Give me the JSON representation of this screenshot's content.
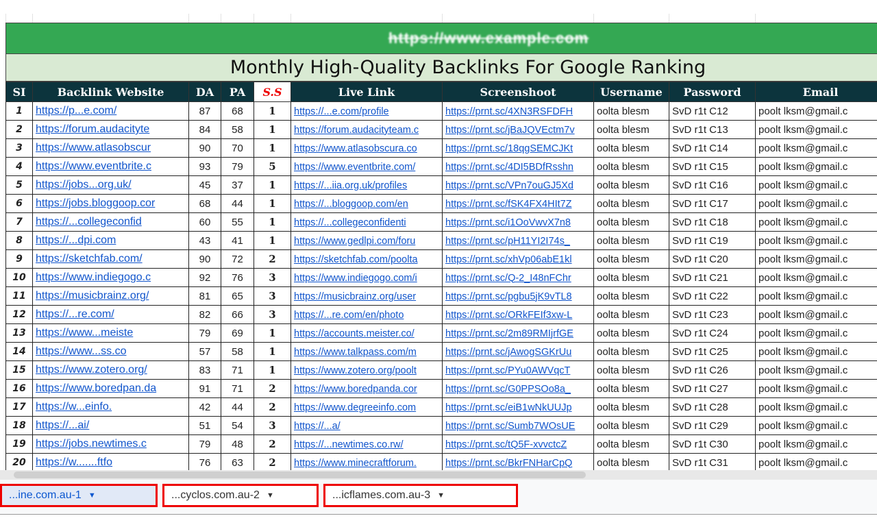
{
  "banner_text": "https://www.example.com",
  "title": "Monthly High-Quality Backlinks For Google Ranking",
  "columns": [
    "SI",
    "Backlink Website",
    "DA",
    "PA",
    "S.S",
    "Live Link",
    "Screenshoot",
    "Username",
    "Password",
    "Email"
  ],
  "rows": [
    [
      "1",
      "https://p...e.com/",
      "87",
      "68",
      "1",
      "https://...e.com/profile",
      "https://prnt.sc/4XN3RSFDFH",
      "oolta blesm",
      "SvD r1t C12",
      "poolt lksm@gmail.c"
    ],
    [
      "2",
      "https://forum.audacityte",
      "84",
      "58",
      "1",
      "https://forum.audacityteam.c",
      "https://prnt.sc/jBaJQVEctm7v",
      "oolta blesm",
      "SvD r1t C13",
      "poolt lksm@gmail.c"
    ],
    [
      "3",
      "https://www.atlasobscur",
      "90",
      "70",
      "1",
      "https://www.atlasobscura.co",
      "https://prnt.sc/18qgSEMCJKt",
      "oolta blesm",
      "SvD r1t C14",
      "poolt lksm@gmail.c"
    ],
    [
      "4",
      "https://www.eventbrite.c",
      "93",
      "79",
      "5",
      "https://www.eventbrite.com/",
      "https://prnt.sc/4DI5BDfRsshn",
      "oolta blesm",
      "SvD r1t C15",
      "poolt lksm@gmail.c"
    ],
    [
      "5",
      "https://jobs...org.uk/",
      "45",
      "37",
      "1",
      "https://...iia.org.uk/profiles",
      "https://prnt.sc/VPn7ouGJ5Xd",
      "oolta blesm",
      "SvD r1t C16",
      "poolt lksm@gmail.c"
    ],
    [
      "6",
      "https://jobs.bloggoop.cor",
      "68",
      "44",
      "1",
      "https://...bloggoop.com/en",
      "https://prnt.sc/fSK4FX4HIt7Z",
      "oolta blesm",
      "SvD r1t C17",
      "poolt lksm@gmail.c"
    ],
    [
      "7",
      "https://...collegeconfid",
      "60",
      "55",
      "1",
      "https://...collegeconfidenti",
      "https://prnt.sc/i1OoVwvX7n8",
      "oolta blesm",
      "SvD r1t C18",
      "poolt lksm@gmail.c"
    ],
    [
      "8",
      "https://...dpi.com",
      "43",
      "41",
      "1",
      "https://www.gedlpi.com/foru",
      "https://prnt.sc/pH11YI2I74s_",
      "oolta blesm",
      "SvD r1t C19",
      "poolt lksm@gmail.c"
    ],
    [
      "9",
      "https://sketchfab.com/",
      "90",
      "72",
      "2",
      "https://sketchfab.com/poolta",
      "https://prnt.sc/xhVp06abE1kl",
      "oolta blesm",
      "SvD r1t C20",
      "poolt lksm@gmail.c"
    ],
    [
      "10",
      "https://www.indiegogo.c",
      "92",
      "76",
      "3",
      "https://www.indiegogo.com/i",
      "https://prnt.sc/Q-2_I48nFChr",
      "oolta blesm",
      "SvD r1t C21",
      "poolt lksm@gmail.c"
    ],
    [
      "11",
      "https://musicbrainz.org/",
      "81",
      "65",
      "3",
      "https://musicbrainz.org/user",
      "https://prnt.sc/pgbu5jK9vTL8",
      "oolta blesm",
      "SvD r1t C22",
      "poolt lksm@gmail.c"
    ],
    [
      "12",
      "https://...re.com/",
      "82",
      "66",
      "3",
      "https://...re.com/en/photo",
      "https://prnt.sc/ORkFEIf3xw-L",
      "oolta blesm",
      "SvD r1t C23",
      "poolt lksm@gmail.c"
    ],
    [
      "13",
      "https://www...meiste",
      "79",
      "69",
      "1",
      "https://accounts.meister.co/",
      "https://prnt.sc/2m89RMIjrfGE",
      "oolta blesm",
      "SvD r1t C24",
      "poolt lksm@gmail.c"
    ],
    [
      "14",
      "https://www...ss.co",
      "57",
      "58",
      "1",
      "https://www.talkpass.com/m",
      "https://prnt.sc/jAwogSGKrUu",
      "oolta blesm",
      "SvD r1t C25",
      "poolt lksm@gmail.c"
    ],
    [
      "15",
      "https://www.zotero.org/",
      "83",
      "71",
      "1",
      "https://www.zotero.org/poolt",
      "https://prnt.sc/PYu0AWVqcT",
      "oolta blesm",
      "SvD r1t C26",
      "poolt lksm@gmail.c"
    ],
    [
      "16",
      "https://www.boredpan.da",
      "91",
      "71",
      "2",
      "https://www.boredpanda.cor",
      "https://prnt.sc/G0PPSOo8a_",
      "oolta blesm",
      "SvD r1t C27",
      "poolt lksm@gmail.c"
    ],
    [
      "17",
      "https://w...einfo.",
      "42",
      "44",
      "2",
      "https://www.degreeinfo.com",
      "https://prnt.sc/eiB1wNkUUJp",
      "oolta blesm",
      "SvD r1t C28",
      "poolt lksm@gmail.c"
    ],
    [
      "18",
      "https://...ai/",
      "51",
      "54",
      "3",
      "https://...a/",
      "https://prnt.sc/Sumb7WOsUE",
      "oolta blesm",
      "SvD r1t C29",
      "poolt lksm@gmail.c"
    ],
    [
      "19",
      "https://jobs.newtimes.c",
      "79",
      "48",
      "2",
      "https://...newtimes.co.rw/",
      "https://prnt.sc/tQ5F-xvvctcZ",
      "oolta blesm",
      "SvD r1t C30",
      "poolt lksm@gmail.c"
    ],
    [
      "20",
      "https://w.......ftfo",
      "76",
      "63",
      "2",
      "https://www.minecraftforum.",
      "https://prnt.sc/BkrFNHarCpQ",
      "oolta blesm",
      "SvD r1t C31",
      "poolt lksm@gmail.c"
    ]
  ],
  "sheet_tabs": [
    {
      "label": "...ine.com.au-1",
      "active": true
    },
    {
      "label": "...cyclos.com.au-2",
      "active": false
    },
    {
      "label": "...icflames.com.au-3",
      "active": false
    }
  ],
  "colors": {
    "banner": "#34a853",
    "title_band": "#d9ead3",
    "header": "#0c343d",
    "link": "#1155cc",
    "highlight": "#ee0000"
  },
  "icons": {
    "tab_menu": "caret-down-icon"
  }
}
